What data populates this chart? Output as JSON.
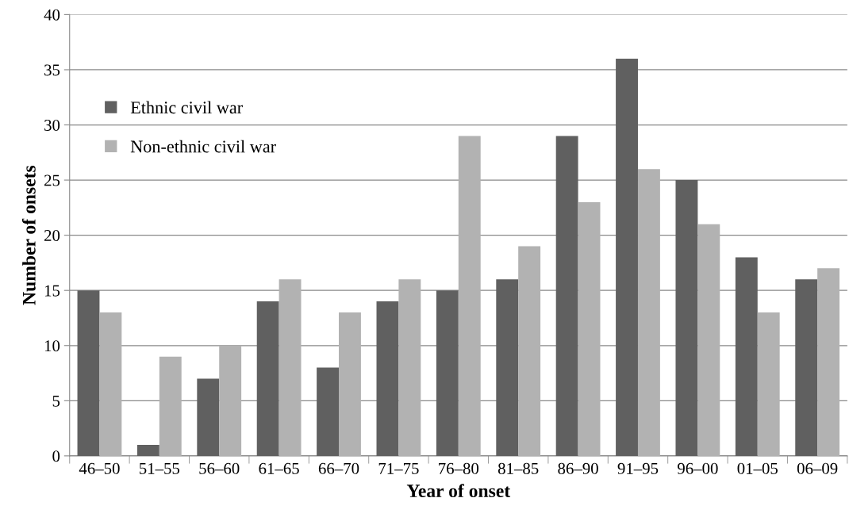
{
  "chart_data": {
    "type": "bar",
    "xlabel": "Year of onset",
    "ylabel": "Number of onsets",
    "categories": [
      "46–50",
      "51–55",
      "56–60",
      "61–65",
      "66–70",
      "71–75",
      "76–80",
      "81–85",
      "86–90",
      "91–95",
      "96–00",
      "01–05",
      "06–09"
    ],
    "series": [
      {
        "name": "Ethnic civil war",
        "color": "#606060",
        "values": [
          15,
          1,
          7,
          14,
          8,
          14,
          15,
          16,
          29,
          36,
          25,
          18,
          16
        ]
      },
      {
        "name": "Non-ethnic civil war",
        "color": "#b2b2b2",
        "values": [
          13,
          9,
          10,
          16,
          13,
          16,
          29,
          19,
          23,
          26,
          21,
          13,
          17
        ]
      }
    ],
    "ylim": [
      0,
      40
    ],
    "yticks": [
      0,
      5,
      10,
      15,
      20,
      25,
      30,
      35,
      40
    ],
    "grid": "y",
    "legend": "upper left"
  }
}
